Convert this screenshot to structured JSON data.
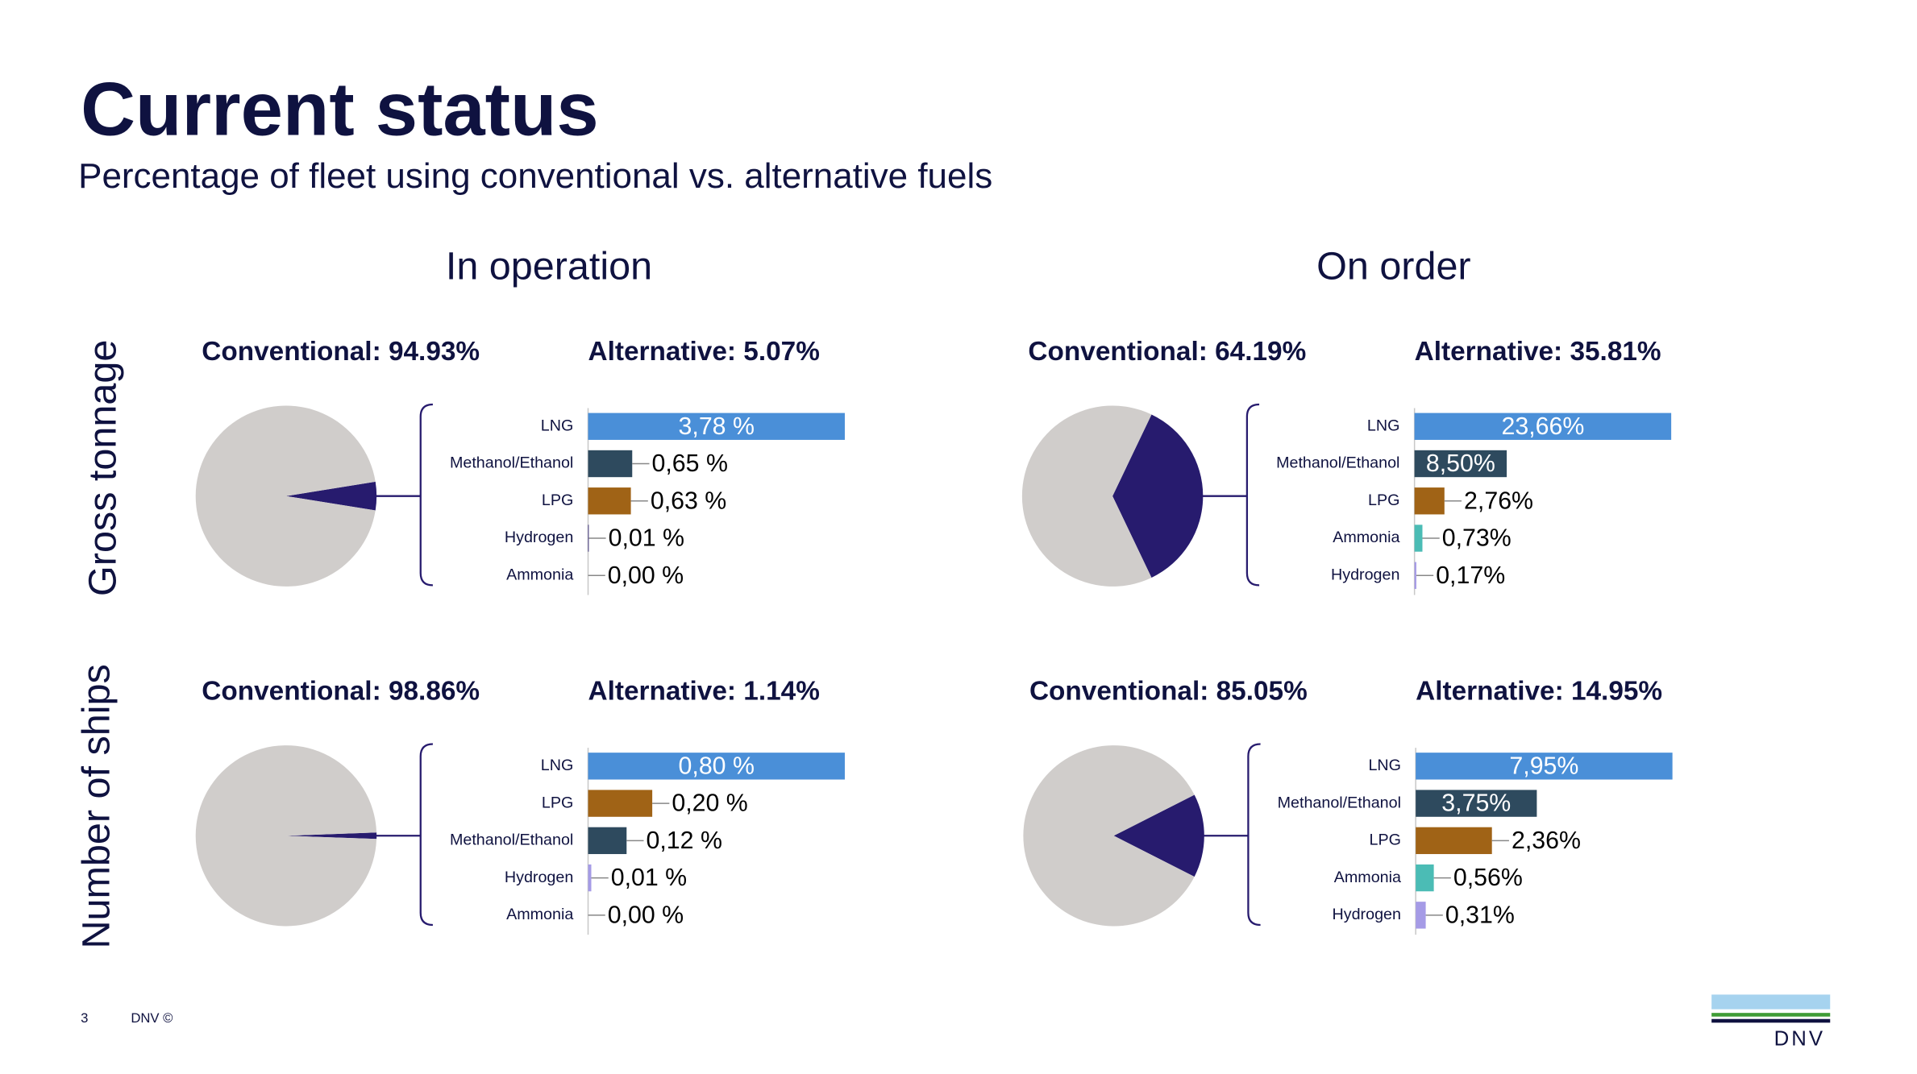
{
  "header": {
    "title": "Current status",
    "subtitle": "Percentage of fleet using conventional vs. alternative fuels",
    "columns": [
      "In operation",
      "On order"
    ],
    "rows": [
      "Gross tonnage",
      "Number of ships"
    ]
  },
  "footer": {
    "page": "3",
    "copyright": "DNV ©",
    "logo": "DNV"
  },
  "chart_data": [
    {
      "type": "pie",
      "categories": [
        "Conventional",
        "Alternative"
      ],
      "values": [
        94.93,
        5.07
      ],
      "value_labels": [
        "Conventional: 94.93%",
        "Alternative: 5.07%"
      ],
      "colors": [
        "#d0cdcb",
        "#271b6e"
      ]
    },
    {
      "type": "bar",
      "orientation": "horizontal",
      "categories": [
        "LNG",
        "Methanol/Ethanol",
        "LPG",
        "Hydrogen",
        "Ammonia"
      ],
      "values": [
        3.78,
        0.65,
        0.63,
        0.01,
        0.0
      ],
      "value_labels": [
        "3,78 %",
        "0,65 %",
        "0,63 %",
        "0,01 %",
        "0,00 %"
      ],
      "colors": [
        "#4a8fd8",
        "#2e4a5e",
        "#a06316",
        "#271b6e",
        "#4bbcb5"
      ]
    },
    {
      "type": "pie",
      "categories": [
        "Conventional",
        "Alternative"
      ],
      "values": [
        64.19,
        35.81
      ],
      "value_labels": [
        "Conventional: 64.19%",
        "Alternative: 35.81%"
      ],
      "colors": [
        "#d0cdcb",
        "#271b6e"
      ]
    },
    {
      "type": "bar",
      "orientation": "horizontal",
      "categories": [
        "LNG",
        "Methanol/Ethanol",
        "LPG",
        "Ammonia",
        "Hydrogen"
      ],
      "values": [
        23.66,
        8.5,
        2.76,
        0.73,
        0.17
      ],
      "value_labels": [
        "23,66%",
        "8,50%",
        "2,76%",
        "0,73%",
        "0,17%"
      ],
      "colors": [
        "#4a8fd8",
        "#2e4a5e",
        "#a06316",
        "#4bbcb5",
        "#a59be6"
      ]
    },
    {
      "type": "pie",
      "categories": [
        "Conventional",
        "Alternative"
      ],
      "values": [
        98.86,
        1.14
      ],
      "value_labels": [
        "Conventional: 98.86%",
        "Alternative: 1.14%"
      ],
      "colors": [
        "#d0cdcb",
        "#271b6e"
      ]
    },
    {
      "type": "bar",
      "orientation": "horizontal",
      "categories": [
        "LNG",
        "LPG",
        "Methanol/Ethanol",
        "Hydrogen",
        "Ammonia"
      ],
      "values": [
        0.8,
        0.2,
        0.12,
        0.01,
        0.0
      ],
      "value_labels": [
        "0,80 %",
        "0,20 %",
        "0,12 %",
        "0,01 %",
        "0,00 %"
      ],
      "colors": [
        "#4a8fd8",
        "#a06316",
        "#2e4a5e",
        "#a59be6",
        "#4bbcb5"
      ]
    },
    {
      "type": "pie",
      "categories": [
        "Conventional",
        "Alternative"
      ],
      "values": [
        85.05,
        14.95
      ],
      "value_labels": [
        "Conventional: 85.05%",
        "Alternative: 14.95%"
      ],
      "colors": [
        "#d0cdcb",
        "#271b6e"
      ]
    },
    {
      "type": "bar",
      "orientation": "horizontal",
      "categories": [
        "LNG",
        "Methanol/Ethanol",
        "LPG",
        "Ammonia",
        "Hydrogen"
      ],
      "values": [
        7.95,
        3.75,
        2.36,
        0.56,
        0.31
      ],
      "value_labels": [
        "7,95%",
        "3,75%",
        "2,36%",
        "0,56%",
        "0,31%"
      ],
      "colors": [
        "#4a8fd8",
        "#2e4a5e",
        "#a06316",
        "#4bbcb5",
        "#a59be6"
      ]
    }
  ]
}
